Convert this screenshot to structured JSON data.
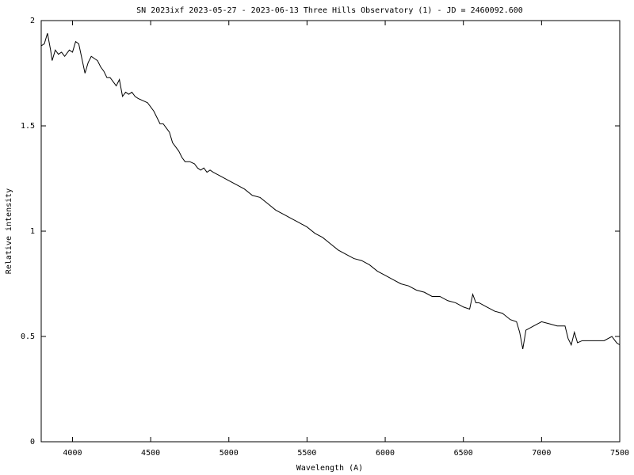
{
  "chart_data": {
    "type": "line",
    "title": "SN 2023ixf 2023-05-27 - 2023-06-13  Three Hills Observatory (1) - JD = 2460092.600",
    "x_label": "Wavelength (A)",
    "y_label": "Relative intensity",
    "xlim": [
      3800,
      7500
    ],
    "ylim": [
      0,
      2
    ],
    "xticks": [
      4000,
      4500,
      5000,
      5500,
      6000,
      6500,
      7000,
      7500
    ],
    "yticks": [
      0,
      0.5,
      1,
      1.5,
      2
    ],
    "grid": false,
    "series": [
      {
        "color": "#000000",
        "x": [
          3800,
          3820,
          3840,
          3860,
          3870,
          3890,
          3910,
          3930,
          3950,
          3980,
          4000,
          4020,
          4040,
          4060,
          4080,
          4100,
          4120,
          4140,
          4160,
          4180,
          4200,
          4220,
          4240,
          4260,
          4280,
          4300,
          4320,
          4340,
          4360,
          4380,
          4400,
          4420,
          4450,
          4480,
          4500,
          4520,
          4540,
          4560,
          4580,
          4600,
          4620,
          4640,
          4660,
          4680,
          4700,
          4720,
          4750,
          4780,
          4800,
          4820,
          4840,
          4860,
          4880,
          4900,
          4950,
          5000,
          5050,
          5100,
          5150,
          5200,
          5250,
          5300,
          5350,
          5400,
          5450,
          5500,
          5550,
          5600,
          5650,
          5700,
          5750,
          5800,
          5850,
          5900,
          5950,
          6000,
          6050,
          6100,
          6150,
          6200,
          6250,
          6300,
          6350,
          6400,
          6450,
          6500,
          6540,
          6560,
          6580,
          6600,
          6650,
          6700,
          6750,
          6800,
          6840,
          6860,
          6880,
          6900,
          6950,
          7000,
          7050,
          7100,
          7150,
          7170,
          7190,
          7210,
          7230,
          7260,
          7300,
          7350,
          7400,
          7450,
          7480,
          7500
        ],
        "values": [
          1.88,
          1.89,
          1.94,
          1.86,
          1.81,
          1.86,
          1.84,
          1.85,
          1.83,
          1.86,
          1.85,
          1.9,
          1.89,
          1.82,
          1.75,
          1.8,
          1.83,
          1.82,
          1.81,
          1.78,
          1.76,
          1.73,
          1.73,
          1.71,
          1.69,
          1.72,
          1.64,
          1.66,
          1.65,
          1.66,
          1.64,
          1.63,
          1.62,
          1.61,
          1.59,
          1.57,
          1.54,
          1.51,
          1.51,
          1.49,
          1.47,
          1.42,
          1.4,
          1.38,
          1.35,
          1.33,
          1.33,
          1.32,
          1.3,
          1.29,
          1.3,
          1.28,
          1.29,
          1.28,
          1.26,
          1.24,
          1.22,
          1.2,
          1.17,
          1.16,
          1.13,
          1.1,
          1.08,
          1.06,
          1.04,
          1.02,
          0.99,
          0.97,
          0.94,
          0.91,
          0.89,
          0.87,
          0.86,
          0.84,
          0.81,
          0.79,
          0.77,
          0.75,
          0.74,
          0.72,
          0.71,
          0.69,
          0.69,
          0.67,
          0.66,
          0.64,
          0.63,
          0.7,
          0.66,
          0.66,
          0.64,
          0.62,
          0.61,
          0.58,
          0.57,
          0.52,
          0.44,
          0.53,
          0.55,
          0.57,
          0.56,
          0.55,
          0.55,
          0.49,
          0.46,
          0.52,
          0.47,
          0.48,
          0.48,
          0.48,
          0.48,
          0.5,
          0.47,
          0.46
        ]
      }
    ]
  }
}
